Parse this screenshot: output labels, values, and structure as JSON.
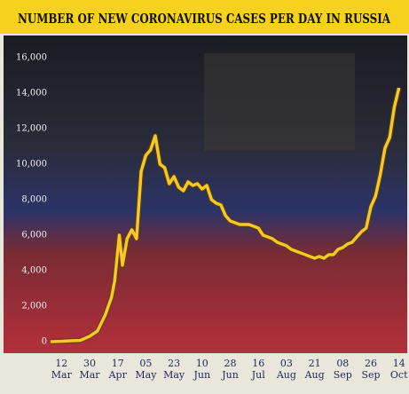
{
  "chart_data": {
    "type": "line",
    "title": "NUMBER OF NEW CORONAVIRUS CASES PER DAY IN RUSSIA",
    "x": [
      "5 Mar",
      "12 Mar",
      "18 Mar",
      "24 Mar",
      "30 Mar",
      "4 Apr",
      "9 Apr",
      "13 Apr",
      "15 Apr",
      "18 Apr",
      "20 Apr",
      "23 Apr",
      "26 Apr",
      "29 Apr",
      "2 May",
      "5 May",
      "8 May",
      "11 May",
      "14 May",
      "17 May",
      "20 May",
      "23 May",
      "26 May",
      "29 May",
      "1 Jun",
      "4 Jun",
      "7 Jun",
      "10 Jun",
      "13 Jun",
      "16 Jun",
      "19 Jun",
      "22 Jun",
      "25 Jun",
      "28 Jun",
      "1 Jul",
      "4 Jul",
      "7 Jul",
      "10 Jul",
      "13 Jul",
      "16 Jul",
      "19 Jul",
      "22 Jul",
      "25 Jul",
      "28 Jul",
      "31 Jul",
      "3 Aug",
      "6 Aug",
      "9 Aug",
      "12 Aug",
      "15 Aug",
      "18 Aug",
      "21 Aug",
      "24 Aug",
      "27 Aug",
      "30 Aug",
      "2 Sep",
      "5 Sep",
      "8 Sep",
      "11 Sep",
      "14 Sep",
      "17 Sep",
      "20 Sep",
      "23 Sep",
      "26 Sep",
      "29 Sep",
      "2 Oct",
      "5 Oct",
      "8 Oct",
      "11 Oct",
      "14 Oct"
    ],
    "series": [
      {
        "color": "#f6c823",
        "values": [
          0,
          20,
          50,
          70,
          300,
          600,
          1500,
          2500,
          3400,
          6000,
          4300,
          5800,
          6300,
          5800,
          9600,
          10500,
          10800,
          11600,
          10000,
          9800,
          8900,
          9300,
          8700,
          8500,
          9000,
          8800,
          8900,
          8600,
          8800,
          8000,
          7800,
          7700,
          7100,
          6800,
          6700,
          6600,
          6600,
          6600,
          6500,
          6400,
          6000,
          5900,
          5800,
          5600,
          5500,
          5400,
          5200,
          5100,
          5000,
          4900,
          4800,
          4700,
          4800,
          4700,
          4900,
          4900,
          5200,
          5300,
          5500,
          5600,
          5900,
          6200,
          6400,
          7600,
          8200,
          9400,
          10900,
          11500,
          13200,
          14300
        ]
      }
    ],
    "xlim": [
      "5 Mar",
      "17 Oct"
    ],
    "xticks": [
      "12 Mar",
      "30 Mar",
      "17 Apr",
      "05 May",
      "23 May",
      "10 Jun",
      "28 Jun",
      "16 Jul",
      "03 Aug",
      "21 Aug",
      "08 Sep",
      "26 Sep",
      "14 Oct"
    ],
    "ylim": [
      0,
      16000
    ],
    "yticks": [
      {
        "value": 0,
        "label": "0"
      },
      {
        "value": 2000,
        "label": "2,000"
      },
      {
        "value": 4000,
        "label": "4,000"
      },
      {
        "value": 6000,
        "label": "6,000"
      },
      {
        "value": 8000,
        "label": "8,000"
      },
      {
        "value": 10000,
        "label": "10,000"
      },
      {
        "value": 12000,
        "label": "12,000"
      },
      {
        "value": 14000,
        "label": "14,000"
      },
      {
        "value": 16000,
        "label": "16,000"
      }
    ],
    "grid": false
  }
}
